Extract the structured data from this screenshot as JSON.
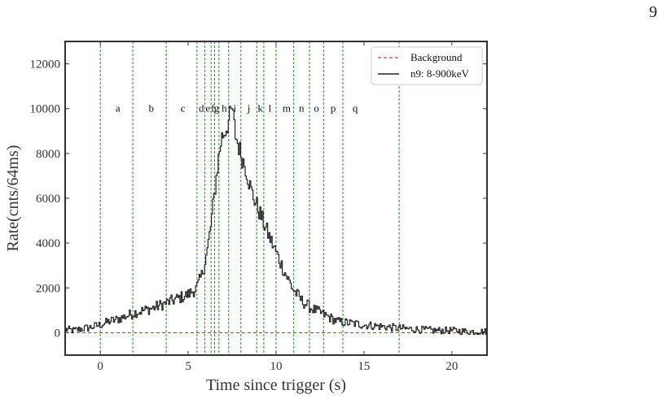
{
  "page_number": "9",
  "chart_data": {
    "type": "line",
    "xlabel": "Time since trigger (s)",
    "ylabel": "Rate(cnts/64ms)",
    "xlim": [
      -2,
      22
    ],
    "ylim": [
      -1000,
      13000
    ],
    "xticks": [
      0,
      5,
      10,
      15,
      20
    ],
    "yticks": [
      0,
      2000,
      4000,
      6000,
      8000,
      10000,
      12000
    ],
    "grid": false,
    "legend_position": "top-right",
    "series": [
      {
        "name": "Background",
        "style": "dashed",
        "color": "#e03030",
        "x": [
          -2,
          22
        ],
        "y": [
          0,
          0
        ]
      },
      {
        "name": "n9: 8-900keV",
        "style": "steps",
        "color": "#222222",
        "x": [
          -2.0,
          -1.5,
          -1.0,
          -0.5,
          0.0,
          0.5,
          1.0,
          1.5,
          2.0,
          2.5,
          3.0,
          3.5,
          4.0,
          4.5,
          5.0,
          5.5,
          5.8,
          6.1,
          6.3,
          6.5,
          6.7,
          6.9,
          7.1,
          7.3,
          7.5,
          7.7,
          8.0,
          8.3,
          8.6,
          9.0,
          9.5,
          10.0,
          10.5,
          11.0,
          11.5,
          12.0,
          12.5,
          13.0,
          13.5,
          14.0,
          15.0,
          16.0,
          17.0,
          18.0,
          19.0,
          20.0,
          21.0,
          22.0
        ],
        "y": [
          150,
          100,
          180,
          250,
          350,
          500,
          600,
          750,
          900,
          1000,
          1100,
          1250,
          1400,
          1550,
          1700,
          2000,
          2600,
          3700,
          4800,
          6200,
          7600,
          8700,
          9000,
          9400,
          10000,
          8800,
          8000,
          7300,
          6300,
          5500,
          4500,
          3600,
          2700,
          1900,
          1400,
          1100,
          900,
          700,
          500,
          450,
          350,
          280,
          200,
          150,
          100,
          100,
          50,
          50
        ]
      }
    ],
    "vertical_lines": [
      0.0,
      1.85,
      3.75,
      5.5,
      5.95,
      6.3,
      6.5,
      6.75,
      7.3,
      8.0,
      8.9,
      9.3,
      10.0,
      11.0,
      11.9,
      12.7,
      13.8,
      17.0
    ],
    "vertical_line_color": "#2a8a2a",
    "segment_labels": [
      {
        "label": "a",
        "x": 1.0
      },
      {
        "label": "b",
        "x": 2.9
      },
      {
        "label": "c",
        "x": 4.7
      },
      {
        "label": "d",
        "x": 5.75
      },
      {
        "label": "e",
        "x": 6.12
      },
      {
        "label": "f",
        "x": 6.4
      },
      {
        "label": "g",
        "x": 6.62
      },
      {
        "label": "h",
        "x": 7.05
      },
      {
        "label": "i",
        "x": 7.65
      },
      {
        "label": "j",
        "x": 8.45
      },
      {
        "label": "k",
        "x": 9.1
      },
      {
        "label": "l",
        "x": 9.65
      },
      {
        "label": "m",
        "x": 10.6
      },
      {
        "label": "n",
        "x": 11.45
      },
      {
        "label": "o",
        "x": 12.3
      },
      {
        "label": "p",
        "x": 13.25
      },
      {
        "label": "q",
        "x": 14.5
      }
    ],
    "segment_label_y": 10000
  }
}
